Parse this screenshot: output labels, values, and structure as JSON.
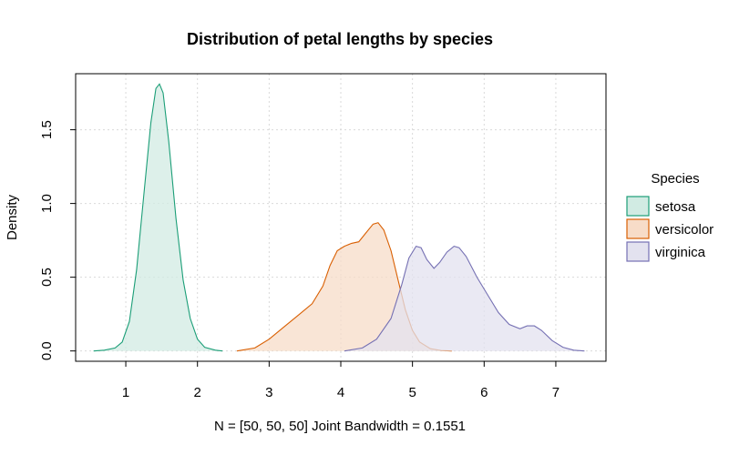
{
  "chart_data": {
    "type": "area",
    "title": "Distribution of petal lengths by species",
    "xlabel": "",
    "ylabel": "Density",
    "subtitle": "N = [50, 50, 50]   Joint Bandwidth = 0.1551",
    "xlim": [
      0.3,
      7.7
    ],
    "ylim": [
      -0.07,
      1.88
    ],
    "x_ticks": [
      1,
      2,
      3,
      4,
      5,
      6,
      7
    ],
    "y_ticks": [
      0.0,
      0.5,
      1.0,
      1.5
    ],
    "y_tick_labels": [
      "0.0",
      "0.5",
      "1.0",
      "1.5"
    ],
    "grid": true,
    "legend": {
      "title": "Species",
      "position": "right",
      "entries": [
        "setosa",
        "versicolor",
        "virginica"
      ]
    },
    "series": [
      {
        "name": "setosa",
        "line_color": "#1B9E77",
        "fill_color": "#D1EBE3",
        "points": [
          [
            0.55,
            0.0
          ],
          [
            0.7,
            0.005
          ],
          [
            0.85,
            0.02
          ],
          [
            0.95,
            0.06
          ],
          [
            1.05,
            0.2
          ],
          [
            1.15,
            0.55
          ],
          [
            1.25,
            1.05
          ],
          [
            1.35,
            1.55
          ],
          [
            1.42,
            1.78
          ],
          [
            1.47,
            1.81
          ],
          [
            1.52,
            1.75
          ],
          [
            1.6,
            1.42
          ],
          [
            1.7,
            0.9
          ],
          [
            1.8,
            0.48
          ],
          [
            1.9,
            0.22
          ],
          [
            2.0,
            0.08
          ],
          [
            2.1,
            0.025
          ],
          [
            2.25,
            0.005
          ],
          [
            2.35,
            0.0
          ]
        ]
      },
      {
        "name": "versicolor",
        "line_color": "#D95F02",
        "fill_color": "#F7DCC8",
        "points": [
          [
            2.55,
            0.0
          ],
          [
            2.8,
            0.02
          ],
          [
            3.0,
            0.08
          ],
          [
            3.2,
            0.16
          ],
          [
            3.4,
            0.24
          ],
          [
            3.6,
            0.32
          ],
          [
            3.75,
            0.44
          ],
          [
            3.85,
            0.58
          ],
          [
            3.95,
            0.68
          ],
          [
            4.05,
            0.71
          ],
          [
            4.15,
            0.73
          ],
          [
            4.25,
            0.74
          ],
          [
            4.35,
            0.8
          ],
          [
            4.45,
            0.86
          ],
          [
            4.52,
            0.87
          ],
          [
            4.6,
            0.82
          ],
          [
            4.7,
            0.68
          ],
          [
            4.8,
            0.48
          ],
          [
            4.9,
            0.28
          ],
          [
            5.0,
            0.14
          ],
          [
            5.1,
            0.06
          ],
          [
            5.25,
            0.015
          ],
          [
            5.4,
            0.003
          ],
          [
            5.55,
            0.0
          ]
        ]
      },
      {
        "name": "virginica",
        "line_color": "#7570B3",
        "fill_color": "#E3E2EF",
        "points": [
          [
            4.05,
            0.0
          ],
          [
            4.3,
            0.02
          ],
          [
            4.5,
            0.08
          ],
          [
            4.7,
            0.22
          ],
          [
            4.85,
            0.45
          ],
          [
            4.95,
            0.63
          ],
          [
            5.05,
            0.71
          ],
          [
            5.12,
            0.7
          ],
          [
            5.2,
            0.62
          ],
          [
            5.3,
            0.56
          ],
          [
            5.38,
            0.6
          ],
          [
            5.48,
            0.67
          ],
          [
            5.58,
            0.71
          ],
          [
            5.65,
            0.7
          ],
          [
            5.75,
            0.64
          ],
          [
            5.9,
            0.5
          ],
          [
            6.05,
            0.38
          ],
          [
            6.2,
            0.26
          ],
          [
            6.35,
            0.18
          ],
          [
            6.5,
            0.15
          ],
          [
            6.6,
            0.17
          ],
          [
            6.7,
            0.17
          ],
          [
            6.8,
            0.14
          ],
          [
            6.95,
            0.07
          ],
          [
            7.1,
            0.025
          ],
          [
            7.25,
            0.005
          ],
          [
            7.4,
            0.0
          ]
        ]
      }
    ]
  }
}
